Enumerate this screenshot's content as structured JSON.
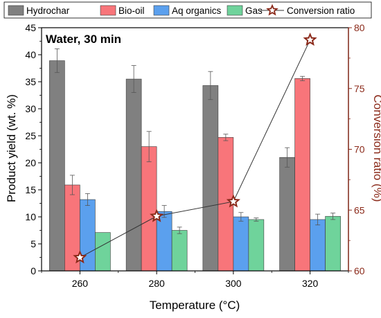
{
  "chart_data": {
    "type": "bar",
    "annotation": "Water, 30 min",
    "xlabel": "Temperature (°C)",
    "ylabel": "Product yield (wt. %)",
    "ylabel_right": "Conversion ratio (%)",
    "categories": [
      "260",
      "280",
      "300",
      "320"
    ],
    "ylim": [
      0,
      45
    ],
    "yticks": [
      "0",
      "5",
      "10",
      "15",
      "20",
      "25",
      "30",
      "35",
      "40",
      "45"
    ],
    "ylim_right": [
      60,
      80
    ],
    "yticks_right": [
      "60",
      "65",
      "70",
      "75",
      "80"
    ],
    "legend_position": "top",
    "series": [
      {
        "name": "Hydrochar",
        "color": "#808080",
        "values": [
          38.9,
          35.5,
          34.3,
          21.0
        ],
        "errors": [
          2.2,
          2.5,
          2.6,
          1.8
        ]
      },
      {
        "name": "Bio-oil",
        "color": "#F8757A",
        "values": [
          15.9,
          23.0,
          24.7,
          35.6
        ],
        "errors": [
          1.8,
          2.8,
          0.6,
          0.4
        ]
      },
      {
        "name": "Aq organics",
        "color": "#5BA0EE",
        "values": [
          13.2,
          11.0,
          10.0,
          9.5
        ],
        "errors": [
          1.1,
          1.1,
          0.8,
          1.0
        ]
      },
      {
        "name": "Gas",
        "color": "#6FD39B",
        "values": [
          7.1,
          7.5,
          9.5,
          10.1
        ],
        "errors": [
          0.0,
          0.6,
          0.3,
          0.6
        ]
      }
    ],
    "line_series": {
      "name": "Conversion ratio",
      "axis": "right",
      "line_color": "#333333",
      "marker": "star",
      "marker_fill": "#FFFFFF",
      "marker_stroke": "#8B2A1A",
      "values": [
        61.1,
        64.5,
        65.7,
        79.0
      ]
    },
    "right_axis_color": "#8B2A1A"
  }
}
